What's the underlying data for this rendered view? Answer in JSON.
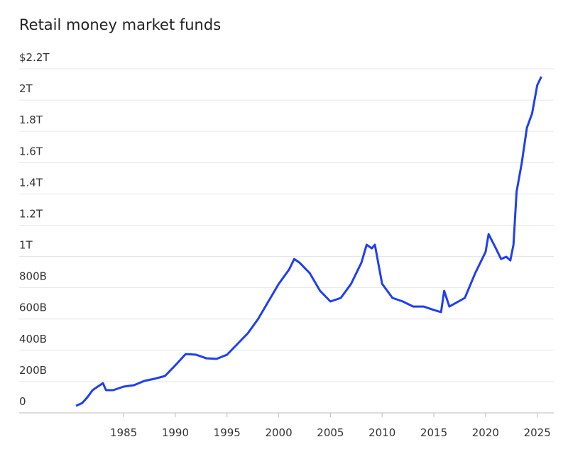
{
  "chart_data": {
    "type": "line",
    "title": "Retail money market funds",
    "x": [
      1980.4,
      1981,
      1981.5,
      1982,
      1982.5,
      1983,
      1983.3,
      1984,
      1985,
      1986,
      1987,
      1988,
      1989,
      1990,
      1991,
      1992,
      1993,
      1994,
      1995,
      1996,
      1997,
      1998,
      1999,
      2000,
      2001,
      2001.5,
      2002,
      2003,
      2004,
      2005,
      2006,
      2007,
      2008,
      2008.5,
      2009,
      2009.3,
      2010,
      2011,
      2012,
      2013,
      2014,
      2015,
      2015.7,
      2016,
      2016.5,
      2017,
      2018,
      2019,
      2020,
      2020.3,
      2021,
      2021.5,
      2022,
      2022.4,
      2022.7,
      2023,
      2023.5,
      2024,
      2024.5,
      2025,
      2025.4
    ],
    "series": [
      {
        "color": "#1f3ff0",
        "values": [
          45,
          63,
          100,
          145,
          168,
          190,
          145,
          145,
          168,
          177,
          204,
          218,
          236,
          304,
          376,
          372,
          349,
          345,
          372,
          440,
          508,
          599,
          712,
          825,
          916,
          984,
          961,
          893,
          780,
          712,
          735,
          825,
          961,
          1075,
          1052,
          1075,
          825,
          735,
          712,
          680,
          680,
          658,
          644,
          780,
          680,
          698,
          735,
          893,
          1029,
          1143,
          1052,
          984,
          998,
          975,
          1075,
          1415,
          1596,
          1823,
          1914,
          2095,
          2150
        ]
      }
    ],
    "xlim": [
      1974.9,
      2026.6
    ],
    "xticks": [
      1985,
      1990,
      1995,
      2000,
      2005,
      2010,
      2015,
      2020,
      2025
    ],
    "ylim": [
      0,
      2200
    ],
    "yticks": [
      0,
      {
        "value": 200,
        "label": "200B"
      },
      {
        "value": 400,
        "label": "400B"
      },
      {
        "value": 600,
        "label": "600B"
      },
      {
        "value": 800,
        "label": "800B"
      },
      {
        "value": 1000,
        "label": "1T"
      },
      {
        "value": 1200,
        "label": "1.2T"
      },
      {
        "value": 1400,
        "label": "1.4T"
      },
      {
        "value": 1600,
        "label": "1.6T"
      },
      {
        "value": 1800,
        "label": "1.8T"
      },
      {
        "value": 2000,
        "label": "2T"
      },
      {
        "value": 2200,
        "label": "$2.2T"
      }
    ],
    "grid": true
  }
}
